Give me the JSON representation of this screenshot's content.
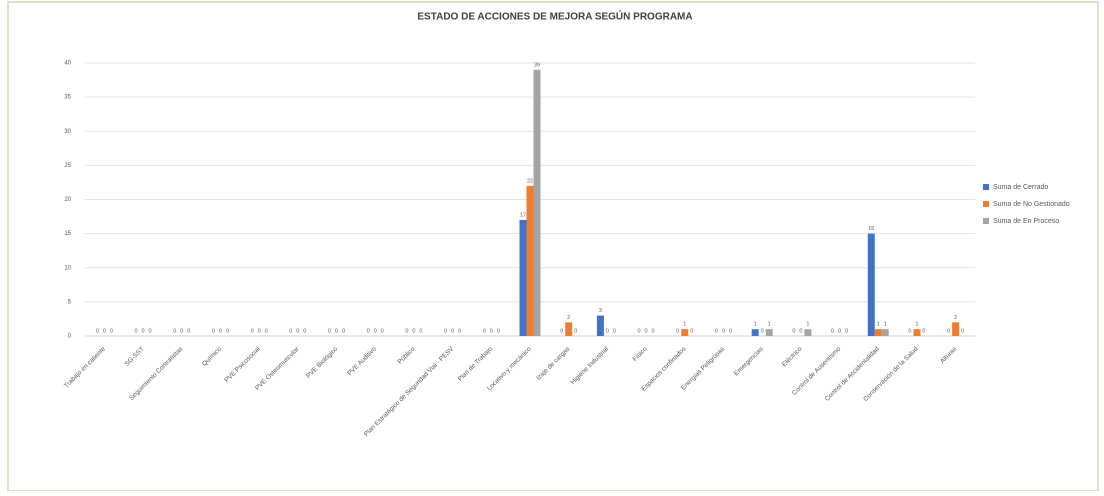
{
  "chart_data": {
    "type": "bar",
    "title": "ESTADO DE ACCIONES DE MEJORA SEGÚN PROGRAMA",
    "categories": [
      "Trabajo en caliente",
      "SG-SST",
      "Seguimiento Contratistas",
      "Químico",
      "PVE Psicosocial",
      "PVE Osteomuscular",
      "PVE Biológico",
      "PVE Auditivo",
      "Público",
      "Plan Estratégico de Seguridad Vial - PESV",
      "Plan de Trabajo",
      "Locativo y mecánico",
      "Izaje de cargas",
      "Higiene Industrial",
      "Físico",
      "Espacios confinados",
      "Energías Peligrosas",
      "Emergencias",
      "Eléctrico",
      "Control de Ausentismo",
      "Control de Accidentalidad",
      "Conservación de la Salud",
      "Alturas"
    ],
    "series": [
      {
        "name": "Suma de Cerrado",
        "color": "#4472c4",
        "values": [
          0,
          0,
          0,
          0,
          0,
          0,
          0,
          0,
          0,
          0,
          0,
          17,
          0,
          3,
          0,
          0,
          0,
          1,
          0,
          0,
          15,
          0,
          0
        ]
      },
      {
        "name": "Suma de No Gestionado",
        "color": "#ed7d31",
        "values": [
          0,
          0,
          0,
          0,
          0,
          0,
          0,
          0,
          0,
          0,
          0,
          22,
          2,
          0,
          0,
          1,
          0,
          0,
          0,
          0,
          1,
          1,
          2
        ]
      },
      {
        "name": "Suma de En Proceso",
        "color": "#a5a5a5",
        "values": [
          0,
          0,
          0,
          0,
          0,
          0,
          0,
          0,
          0,
          0,
          0,
          39,
          0,
          0,
          0,
          0,
          0,
          1,
          1,
          0,
          1,
          0,
          0
        ]
      }
    ],
    "ylim": [
      0,
      40
    ],
    "yticks": [
      0,
      5,
      10,
      15,
      20,
      25,
      30,
      35,
      40
    ],
    "grid": true,
    "legend": "right",
    "data_labels": true
  }
}
